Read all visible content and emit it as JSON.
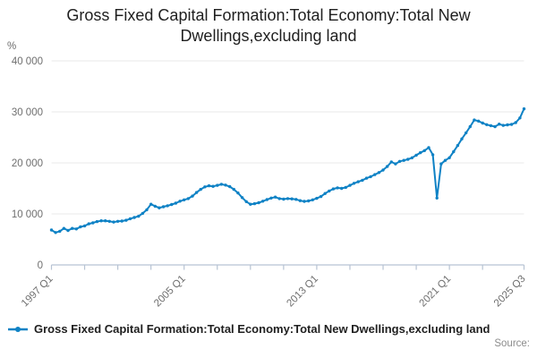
{
  "header": {
    "title": "Gross Fixed Capital Formation:Total Economy:Total New Dwellings,excluding land"
  },
  "legend": {
    "series_label": "Gross Fixed Capital Formation:Total Economy:Total New Dwellings,excluding land"
  },
  "footer": {
    "source_label": "Source:"
  },
  "colors": {
    "series_line": "#0f82c5",
    "grid": "#e9e9e9",
    "axis": "#b7c3d3",
    "tick_label": "#6e6e6e",
    "title_text": "#1f1f1f"
  },
  "chart_data": {
    "type": "line",
    "title": "Gross Fixed Capital Formation:Total Economy:Total New Dwellings,excluding land",
    "xlabel": "",
    "ylabel": "%",
    "x_frequency": "quarterly",
    "x_start": "1997 Q1",
    "x_end": "2025 Q3",
    "ylim": [
      0,
      40000
    ],
    "grid": "horizontal",
    "legend_position": "bottom-left",
    "marker": "dot",
    "y_ticks": [
      {
        "value": 0,
        "label": "0"
      },
      {
        "value": 10000,
        "label": "10 000"
      },
      {
        "value": 20000,
        "label": "20 000"
      },
      {
        "value": 30000,
        "label": "30 000"
      },
      {
        "value": 40000,
        "label": "40 000"
      }
    ],
    "x_tick_labels": [
      {
        "index": 0,
        "label": "1997 Q1"
      },
      {
        "index": 32,
        "label": "2005 Q1"
      },
      {
        "index": 64,
        "label": "2013 Q1"
      },
      {
        "index": 96,
        "label": "2021 Q1"
      },
      {
        "index": 114,
        "label": "2025 Q3"
      }
    ],
    "x_minor_tick_indices": [
      0,
      8,
      16,
      24,
      32,
      40,
      48,
      56,
      64,
      72,
      80,
      88,
      96,
      104,
      114
    ],
    "values": [
      6850,
      6350,
      6600,
      7150,
      6750,
      7150,
      7050,
      7450,
      7650,
      8050,
      8250,
      8500,
      8650,
      8650,
      8550,
      8400,
      8550,
      8600,
      8750,
      9050,
      9300,
      9550,
      10100,
      10800,
      11900,
      11500,
      11200,
      11400,
      11600,
      11850,
      12100,
      12500,
      12750,
      13000,
      13500,
      14200,
      14800,
      15300,
      15500,
      15400,
      15600,
      15800,
      15650,
      15350,
      14800,
      14100,
      13200,
      12400,
      11900,
      12000,
      12200,
      12500,
      12800,
      13100,
      13300,
      13000,
      12900,
      13000,
      12950,
      12850,
      12600,
      12450,
      12550,
      12750,
      13050,
      13400,
      14000,
      14500,
      14900,
      15100,
      15000,
      15200,
      15600,
      16000,
      16300,
      16600,
      17000,
      17300,
      17700,
      18100,
      18600,
      19300,
      20200,
      19800,
      20300,
      20500,
      20700,
      21000,
      21500,
      22000,
      22400,
      23000,
      21600,
      13100,
      19800,
      20500,
      21000,
      22200,
      23400,
      24700,
      25900,
      27100,
      28400,
      28200,
      27800,
      27500,
      27300,
      27100,
      27600,
      27350,
      27450,
      27550,
      27900,
      28800,
      30600
    ]
  }
}
